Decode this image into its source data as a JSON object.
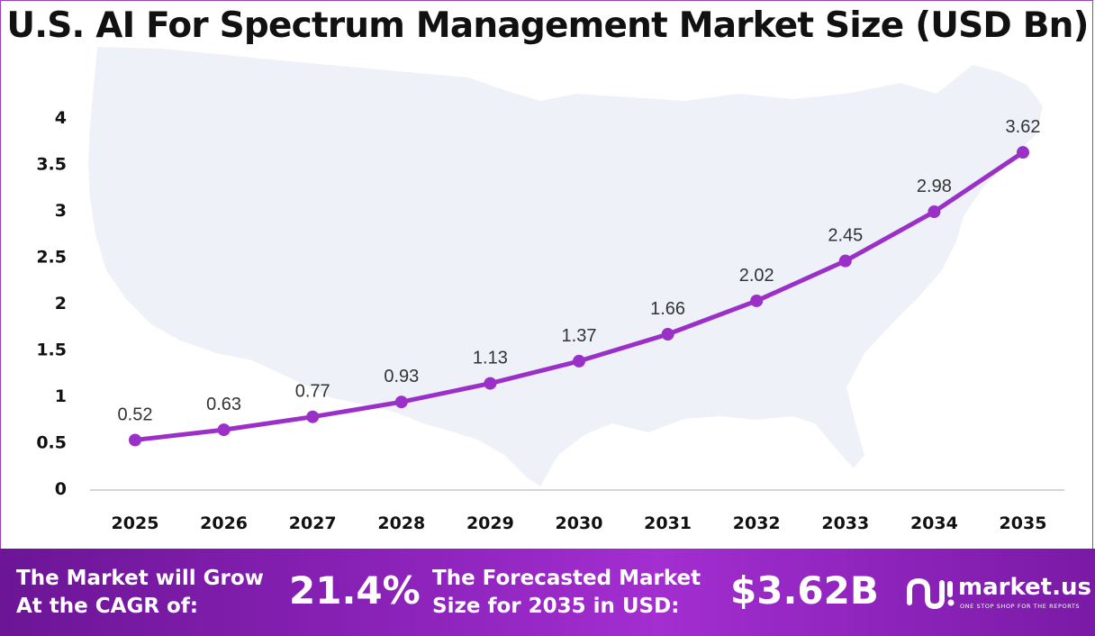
{
  "title": "U.S. AI For Spectrum Management Market Size (USD Bn)",
  "chart_data": {
    "type": "line",
    "title": "U.S. AI For Spectrum Management Market Size (USD Bn)",
    "categories": [
      "2025",
      "2026",
      "2027",
      "2028",
      "2029",
      "2030",
      "2031",
      "2032",
      "2033",
      "2034",
      "2035"
    ],
    "series": [
      {
        "values": [
          0.52,
          0.63,
          0.77,
          0.93,
          1.13,
          1.37,
          1.66,
          2.02,
          2.45,
          2.98,
          3.62
        ]
      }
    ],
    "data_labels": [
      "0.52",
      "0.63",
      "0.77",
      "0.93",
      "1.13",
      "1.37",
      "1.66",
      "2.02",
      "2.45",
      "2.98",
      "3.62"
    ],
    "ylim": [
      0,
      4
    ],
    "yticks": [
      "0",
      "0.5",
      "1",
      "1.5",
      "2",
      "2.5",
      "3",
      "3.5",
      "4"
    ],
    "ytick_values": [
      0,
      0.5,
      1,
      1.5,
      2,
      2.5,
      3,
      3.5,
      4
    ],
    "grid": false,
    "line_color": "#9b30c8",
    "background_shape": "usa-map-silhouette",
    "background_color": "#eef1f8"
  },
  "footer": {
    "cagr_text": "The Market will Grow\nAt the CAGR of:",
    "cagr_value": "21.4%",
    "forecast_text": "The Forecasted Market\nSize for 2035 in USD:",
    "forecast_value": "$3.62B",
    "brand_name": "market.us",
    "brand_tagline": "ONE STOP SHOP FOR THE REPORTS",
    "brand_icon": "market-us-logo-icon",
    "bg_color": "#8a22b8"
  }
}
